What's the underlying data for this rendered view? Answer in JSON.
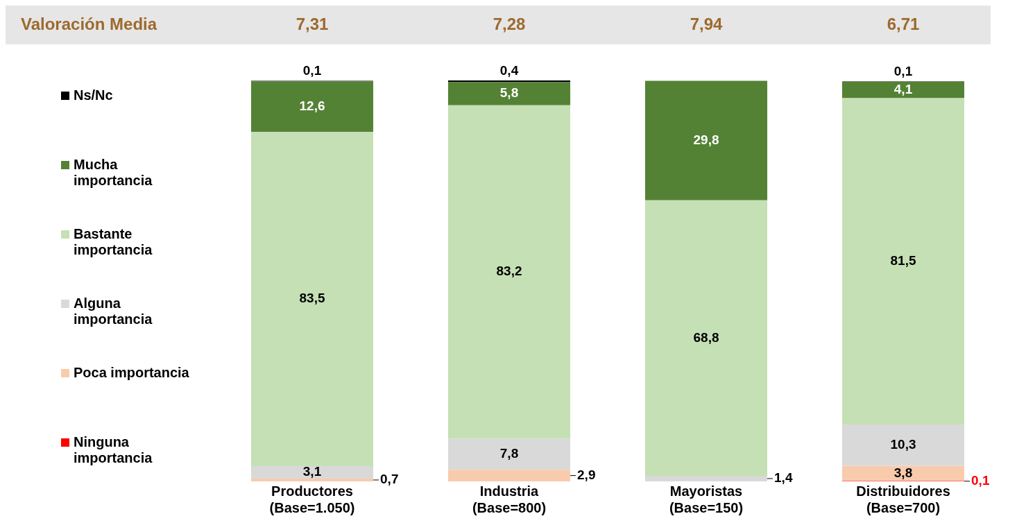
{
  "chart_data": {
    "type": "bar",
    "stacked": true,
    "legend": "left",
    "grid": false,
    "categories": [
      "Productores\n(Base=1.050)",
      "Industria\n(Base=800)",
      "Mayoristas\n(Base=150)",
      "Distribuidores\n(Base=700)"
    ],
    "series": [
      {
        "name": "Ninguna importancia",
        "color": "#ff0000",
        "values": [
          0,
          0,
          0,
          0.1
        ],
        "value_labels": [
          null,
          null,
          null,
          "0,1"
        ]
      },
      {
        "name": "Poca importancia",
        "color": "#f8cbad",
        "values": [
          0.7,
          2.9,
          0,
          3.8
        ],
        "value_labels": [
          "0,7",
          "2,9",
          null,
          "3,8"
        ]
      },
      {
        "name": "Alguna importancia",
        "color": "#d9d9d9",
        "values": [
          3.1,
          7.8,
          1.4,
          10.3
        ],
        "value_labels": [
          "3,1",
          "7,8",
          "1,4",
          "10,3"
        ]
      },
      {
        "name": "Bastante importancia",
        "color": "#c5e0b4",
        "values": [
          83.5,
          83.2,
          68.8,
          81.5
        ],
        "value_labels": [
          "83,5",
          "83,2",
          "68,8",
          "81,5"
        ]
      },
      {
        "name": "Mucha importancia",
        "color": "#548235",
        "values": [
          12.6,
          5.8,
          29.8,
          4.1
        ],
        "value_labels": [
          "12,6",
          "5,8",
          "29,8",
          "4,1"
        ]
      },
      {
        "name": "Ns/Nc",
        "color": "#000000",
        "values": [
          0.1,
          0.4,
          0,
          0.1
        ],
        "value_labels": [
          "0,1",
          "0,4",
          null,
          "0,1"
        ]
      }
    ],
    "annotations": [
      "Valoración Media",
      "7,31",
      "7,28",
      "7,94",
      "6,71"
    ]
  }
}
